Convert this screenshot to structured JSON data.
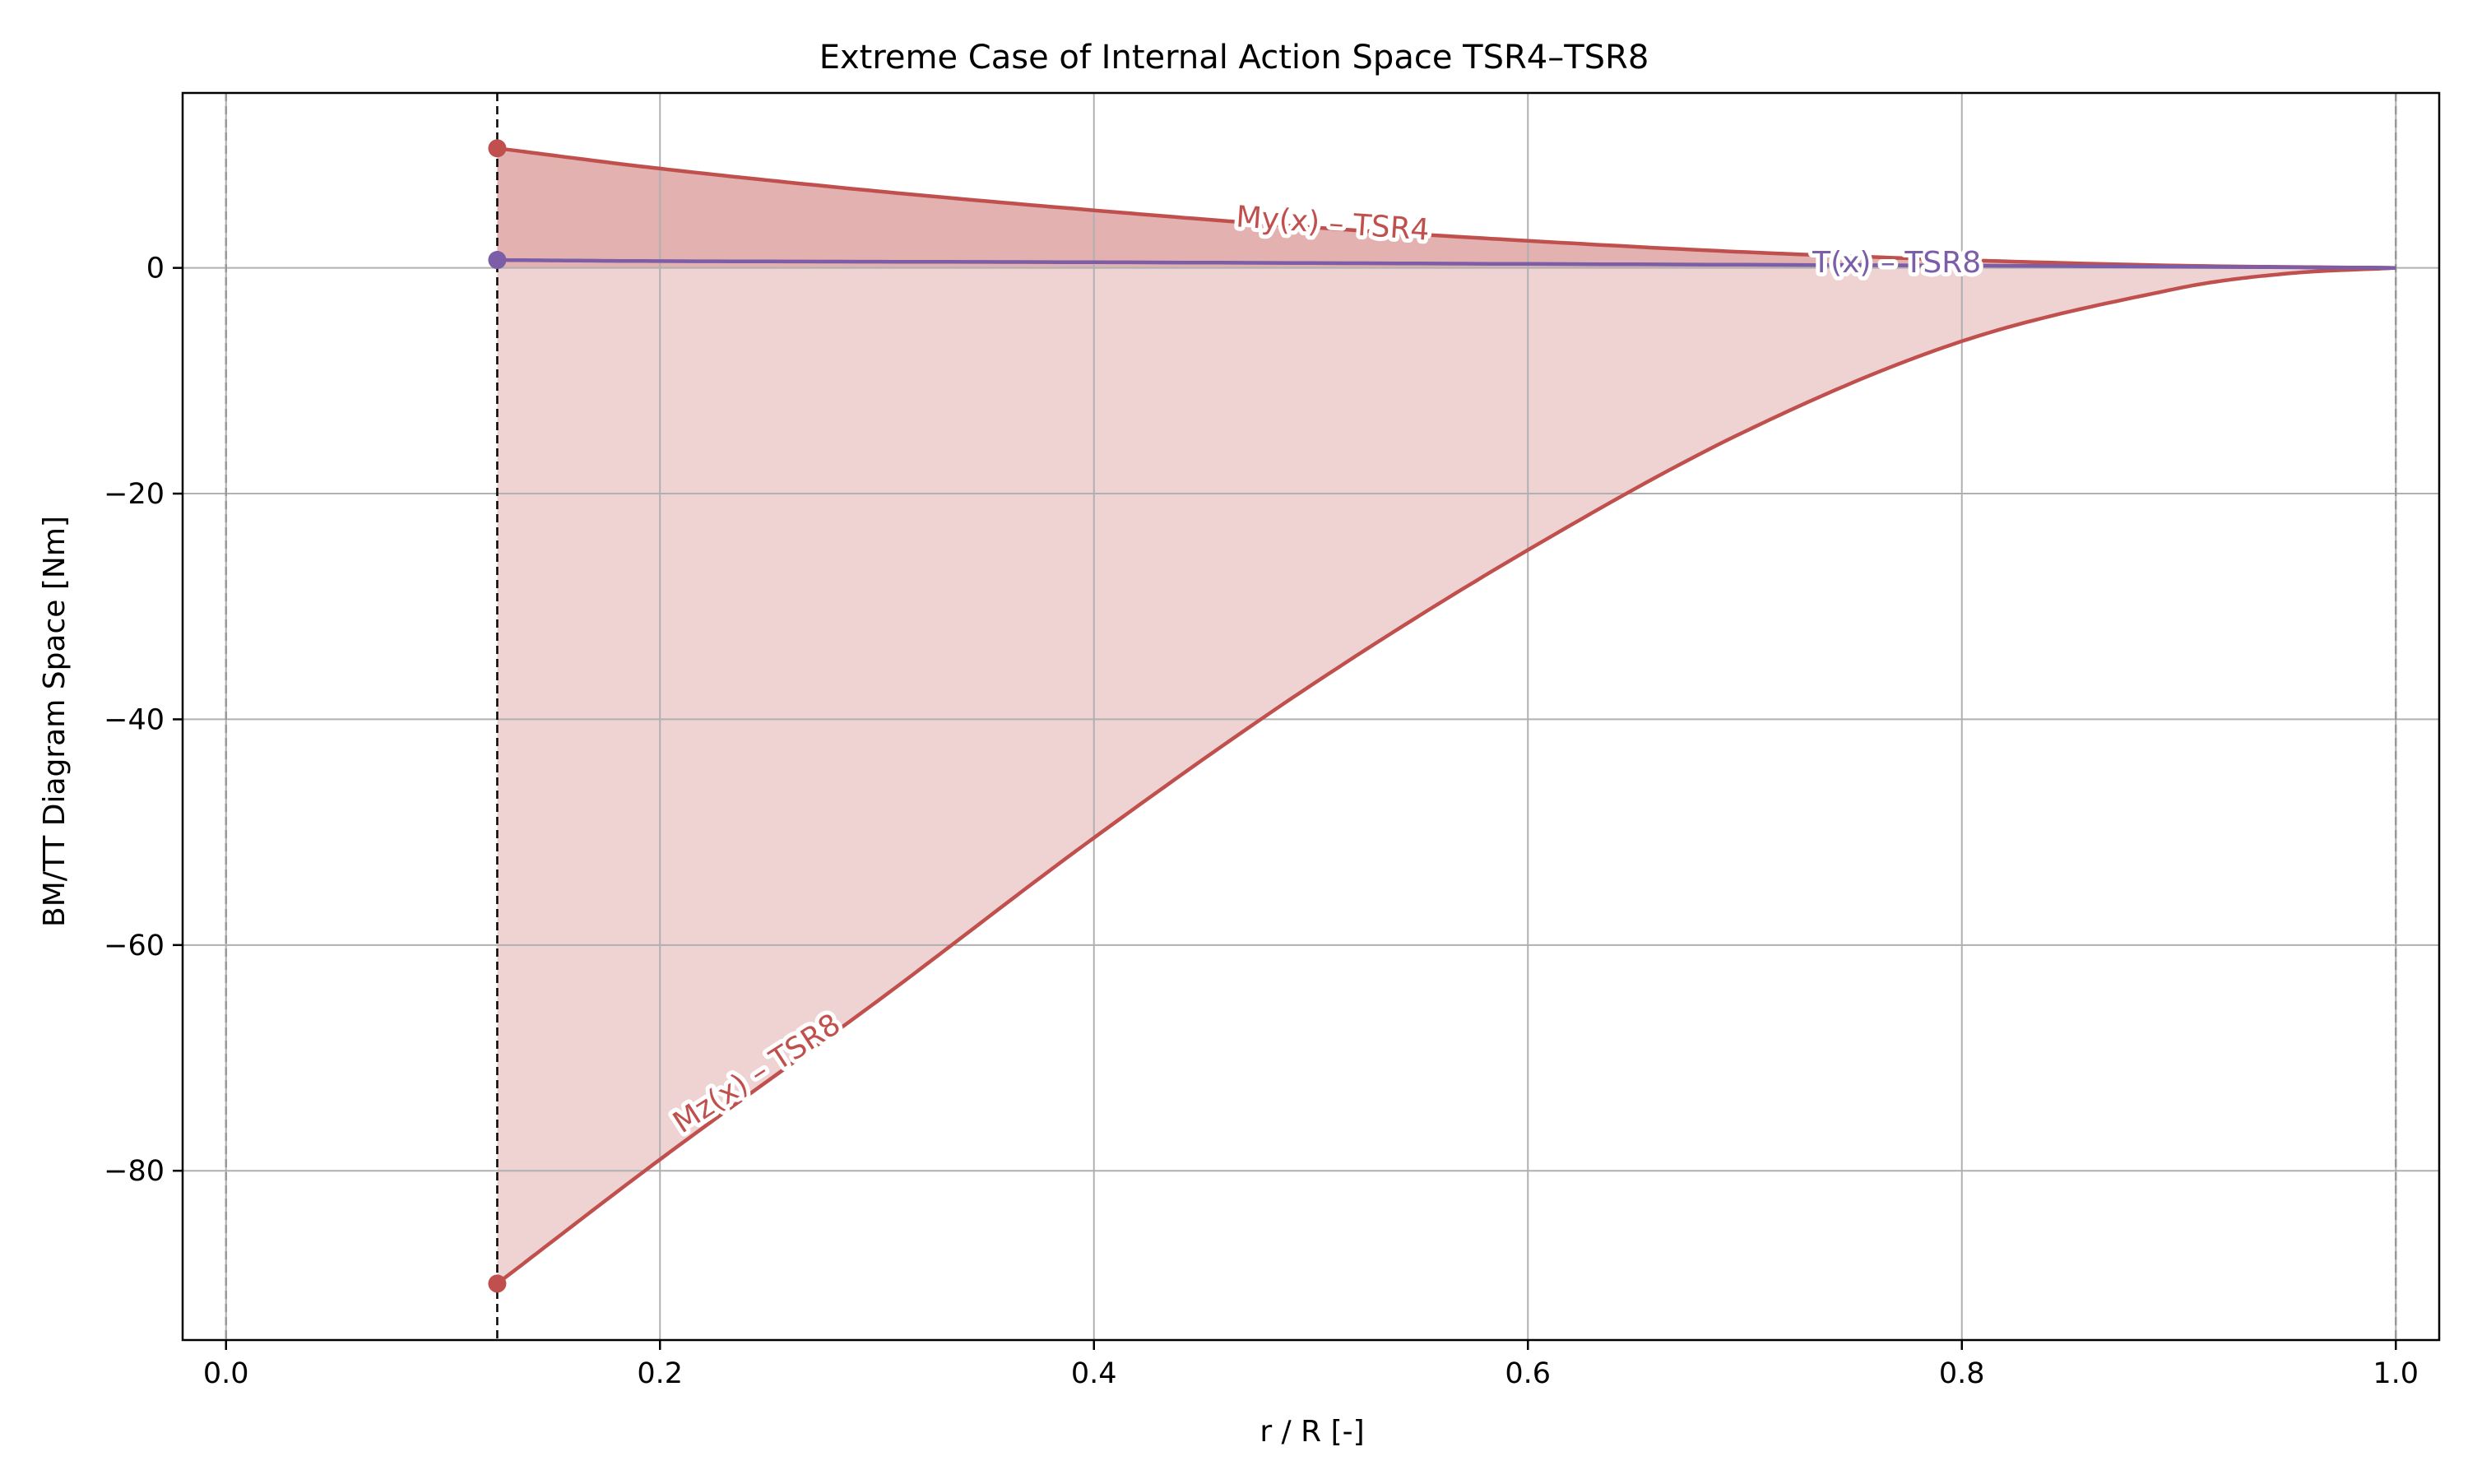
{
  "chart_data": {
    "type": "line",
    "title": "Extreme Case of Internal Action Space TSR4–TSR8",
    "xlabel": "r / R [-]",
    "ylabel": "BM/TT Diagram Space [Nm]",
    "xlim": [
      -0.02,
      1.02
    ],
    "ylim": [
      -95,
      15.5
    ],
    "x_ticks": [
      0.0,
      0.2,
      0.4,
      0.6,
      0.8,
      1.0
    ],
    "x_tick_labels": [
      "0.0",
      "0.2",
      "0.4",
      "0.6",
      "0.8",
      "1.0"
    ],
    "y_ticks": [
      -80,
      -60,
      -40,
      -20,
      0
    ],
    "y_tick_labels": [
      "−80",
      "−60",
      "−40",
      "−20",
      "0"
    ],
    "grid": true,
    "vertical_lines": [
      {
        "x": 0.0,
        "style": "dashed",
        "color": "#999999"
      },
      {
        "x": 0.125,
        "style": "dashed",
        "color": "#000000"
      },
      {
        "x": 1.0,
        "style": "dashed",
        "color": "#999999"
      }
    ],
    "series": [
      {
        "name": "My(x) – TSR4",
        "color": "#c0504d",
        "x": [
          0.125,
          0.2,
          0.3,
          0.4,
          0.5,
          0.6,
          0.7,
          0.8,
          0.9,
          1.0
        ],
        "y": [
          10.6,
          8.8,
          6.8,
          5.1,
          3.6,
          2.4,
          1.4,
          0.7,
          0.2,
          0.0
        ]
      },
      {
        "name": "T(x) – TSR8",
        "color": "#7b5ea7",
        "x": [
          0.125,
          0.2,
          0.4,
          0.6,
          0.8,
          1.0
        ],
        "y": [
          0.7,
          0.6,
          0.5,
          0.35,
          0.2,
          0.0
        ]
      },
      {
        "name": "Mz(x) – TSR8",
        "color": "#c0504d",
        "x": [
          0.125,
          0.2,
          0.3,
          0.4,
          0.5,
          0.6,
          0.7,
          0.8,
          0.9,
          0.95,
          1.0
        ],
        "y": [
          -90.0,
          -79.0,
          -65.0,
          -50.5,
          -37.0,
          -25.0,
          -14.5,
          -6.5,
          -1.8,
          -0.5,
          0.0
        ]
      }
    ],
    "start_markers": true,
    "fill_between": true,
    "fill_colors": {
      "upper": "#e3b1af",
      "lower": "#efd3d3"
    },
    "inline_labels": [
      {
        "text": "My(x) – TSR4",
        "x": 0.51,
        "y": 3.8,
        "angle_deg": 4,
        "color": "#c0504d"
      },
      {
        "text": "T(x) – TSR8",
        "x": 0.77,
        "y": 0.35,
        "angle_deg": 0,
        "color": "#7b5ea7"
      },
      {
        "text": "Mz(x) – TSR8",
        "x": 0.245,
        "y": -71.5,
        "angle_deg": -33,
        "color": "#c0504d"
      }
    ]
  }
}
